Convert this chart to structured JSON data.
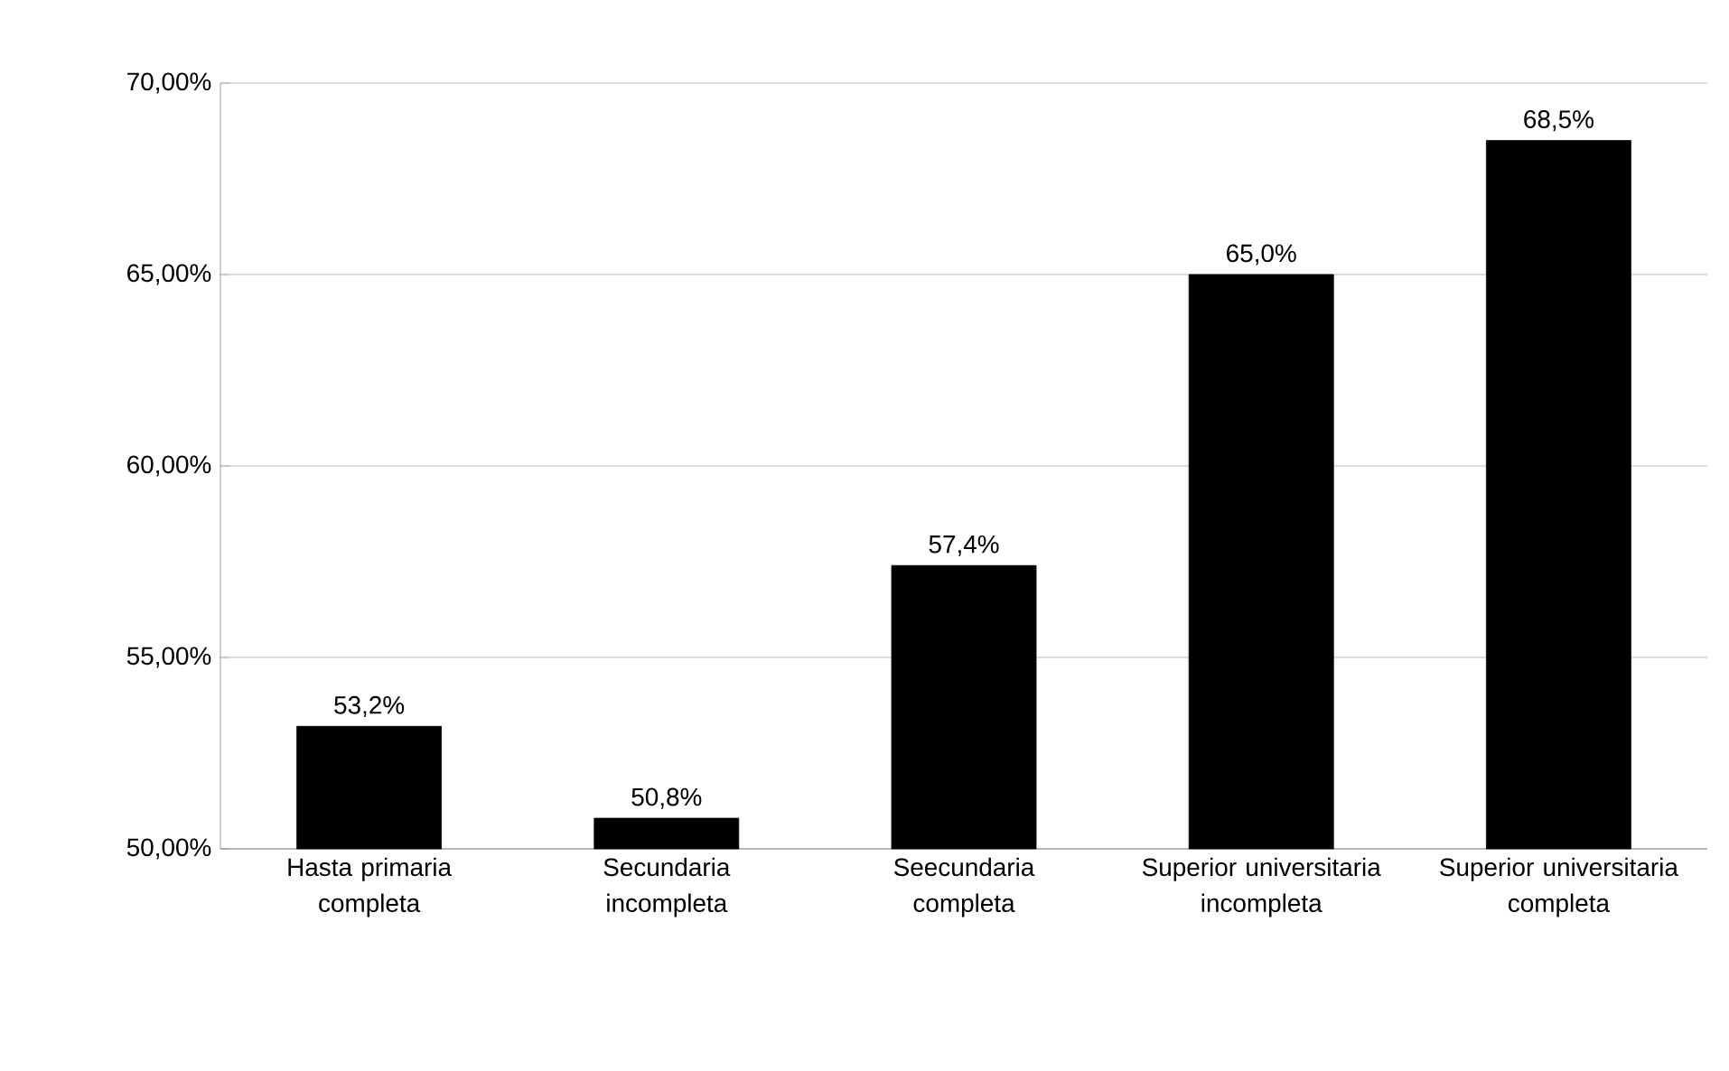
{
  "chart_data": {
    "type": "bar",
    "categories": [
      "Hasta primaria completa",
      "Secundaria incompleta",
      "Seecundaria completa",
      "Superior universitaria incompleta",
      "Superior universitaria completa"
    ],
    "values": [
      53.2,
      50.8,
      57.4,
      65.0,
      68.5
    ],
    "value_labels": [
      "53,2%",
      "50,8%",
      "57,4%",
      "65,0%",
      "68,5%"
    ],
    "color": "#000000",
    "ylim": [
      50,
      70
    ],
    "yticks": [
      {
        "value": 50,
        "label": "50,00%"
      },
      {
        "value": 55,
        "label": "55,00%"
      },
      {
        "value": 60,
        "label": "60,00%"
      },
      {
        "value": 65,
        "label": "65,00%"
      },
      {
        "value": 70,
        "label": "70,00%"
      }
    ],
    "grid": "y"
  }
}
